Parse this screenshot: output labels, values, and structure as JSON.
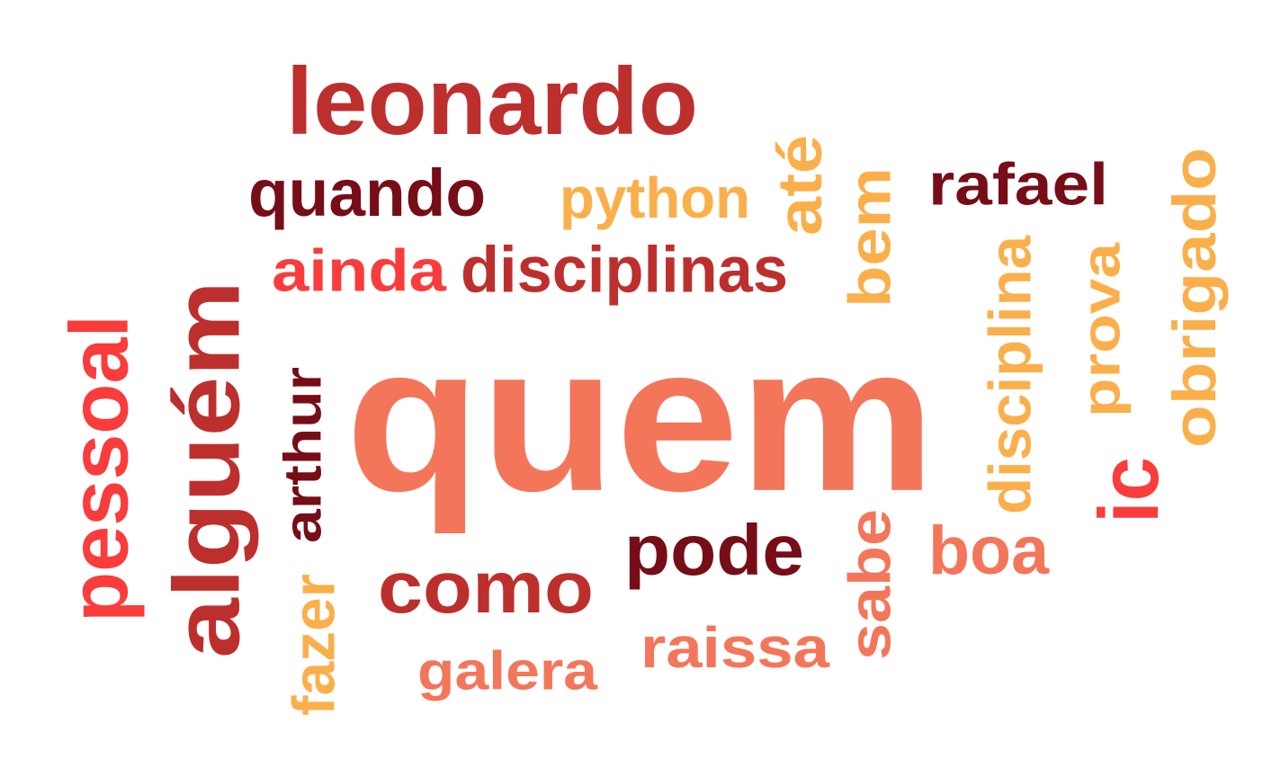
{
  "colors": {
    "background": "#ffffff",
    "coral": "#f4765a",
    "crimson": "#bd2f2d",
    "dark_maroon": "#760d17",
    "amber": "#fbaf4b",
    "red": "#fa3c3c"
  },
  "words": {
    "quem": "quem",
    "leonardo": "leonardo",
    "quando": "quando",
    "python": "python",
    "ate": "até",
    "rafael": "rafael",
    "ainda": "ainda",
    "disciplinas": "disciplinas",
    "bem": "bem",
    "obrigado": "obrigado",
    "prova": "prova",
    "disciplina": "disciplina",
    "pessoal": "pessoal",
    "alguem": "alguém",
    "arthur": "arthur",
    "ic": "ic",
    "pode": "pode",
    "sabe": "sabe",
    "boa": "boa",
    "como": "como",
    "fazer": "fazer",
    "raissa": "raissa",
    "galera": "galera"
  }
}
